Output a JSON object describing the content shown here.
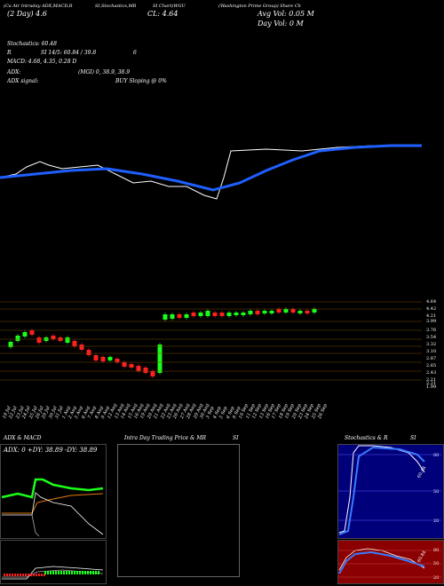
{
  "header": {
    "tabs": [
      "(Ca Atr Intraday ADX,MACD,R",
      "SI,Stochastics,MR",
      "SI Chart)WGU",
      "(Washington Prime Group) Share Ch"
    ],
    "price_label": "CL: 4.64",
    "avg_vol": "Avg Vol: 0.05 M",
    "day_vol": "Day Vol: 0   M",
    "prev_close": "(2 Day) 4.6"
  },
  "indicators": {
    "stochastics": "Stochastics: 60.48",
    "rsi": "SI 14/5: 60.84 / 39.8",
    "rsi_prefix": "R",
    "rsi_extra": "6",
    "macd": "MACD: 4.68, 4.35, 0.28  D",
    "adx": "ADX:",
    "adx_values": "(MGI) 0, 38.9, 38.9",
    "adx_signal": "ADX  signal:",
    "signal_text": "BUY Sloping @ 0%"
  },
  "price_axis": [
    "4.64",
    "4.42",
    "4.21",
    "3.99",
    "3.76",
    "3.54",
    "3.32",
    "3.10",
    "2.87",
    "2.65",
    "2.43",
    "2.21",
    "1.99",
    "2.21"
  ],
  "dates": [
    "19 Jul",
    "22 Jul",
    "23 Jul",
    "24 Jul",
    "25 Jul",
    "26 Jul",
    "29 Jul",
    "30 Jul",
    "31 Jul",
    "1 Aug",
    "2 Aug",
    "5 Aug",
    "6 Aug",
    "7 Aug",
    "8 Aug",
    "9 Aug",
    "12 Aug",
    "13 Aug",
    "14 Aug",
    "15 Aug",
    "16 Aug",
    "19 Aug",
    "20 Aug",
    "21 Aug",
    "22 Aug",
    "23 Aug",
    "26 Aug",
    "27 Aug",
    "28 Aug",
    "29 Aug",
    "30 Aug",
    "3 Sep",
    "4 Sep",
    "5 Sep",
    "6 Sep",
    "9 Sep",
    "10 Sep",
    "11 Sep",
    "12 Sep",
    "13 Sep",
    "16 Sep",
    "17 Sep",
    "18 Sep",
    "19 Sep",
    "20 Sep",
    "23 Sep",
    "24 Sep",
    "25 Sep",
    "26 Sep"
  ],
  "bottom": {
    "adx_macd_title": "ADX  & MACD",
    "adx_readout": "ADX: 0  +DY: 38.89  -DY: 38.89",
    "intraday_title": "Intra  Day Trading Price  & MR",
    "intraday_title_suffix": "SI",
    "stoch_title": "Stochastics & R",
    "stoch_title_suffix": "SI",
    "stoch_levels": [
      "80",
      "50",
      "20"
    ],
    "rsi_levels": [
      "80",
      "50",
      "20"
    ],
    "stoch_last": "60.48",
    "rsi_last": "60.84"
  },
  "colors": {
    "up": "#1aff1a",
    "down": "#ff2020",
    "ma": "#1f5fff",
    "price": "#ffffff",
    "orange": "#e07a10",
    "stoch_bg": "#00007a",
    "rsi_bg": "#8b0000"
  }
}
